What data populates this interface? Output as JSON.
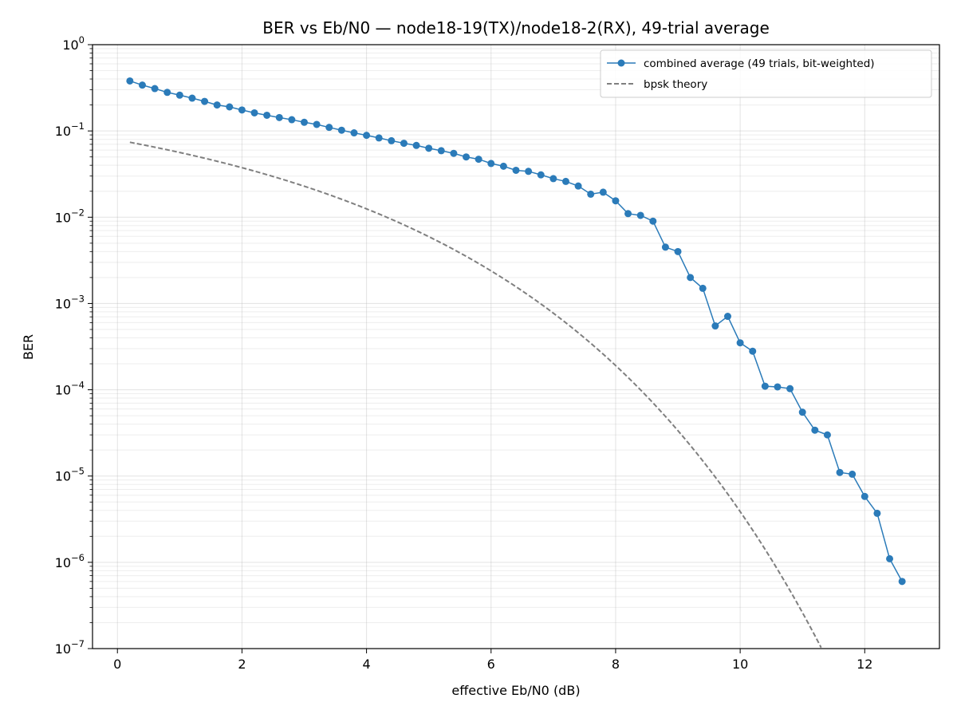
{
  "chart_data": {
    "type": "line",
    "title": "BER vs Eb/N0 — node18-19(TX)/node18-2(RX), 49-trial average",
    "xlabel": "effective Eb/N0 (dB)",
    "ylabel": "BER",
    "xlim": [
      -0.4,
      13.2
    ],
    "ylim": [
      1e-07,
      1
    ],
    "yscale": "log",
    "grid": true,
    "legend_position": "top-right",
    "x_ticks": [
      "0",
      "2",
      "4",
      "6",
      "8",
      "10",
      "12"
    ],
    "y_tick_exponents": [
      "0",
      "−1",
      "−2",
      "−3",
      "−4",
      "−5",
      "−6",
      "−7"
    ],
    "y_tick_base": "10",
    "series": [
      {
        "name": "combined average (49 trials, bit-weighted)",
        "color": "#2b7bb9",
        "style": "line-marker",
        "x": [
          0.2,
          0.4,
          0.6,
          0.8,
          1.0,
          1.2,
          1.4,
          1.6,
          1.8,
          2.0,
          2.2,
          2.4,
          2.6,
          2.8,
          3.0,
          3.2,
          3.4,
          3.6,
          3.8,
          4.0,
          4.2,
          4.4,
          4.6,
          4.8,
          5.0,
          5.2,
          5.4,
          5.6,
          5.8,
          6.0,
          6.2,
          6.4,
          6.6,
          6.8,
          7.0,
          7.2,
          7.4,
          7.6,
          7.8,
          8.0,
          8.2,
          8.4,
          8.6,
          8.8,
          9.0,
          9.2,
          9.4,
          9.6,
          9.8,
          10.0,
          10.2,
          10.4,
          10.6,
          10.8,
          11.0,
          11.2,
          11.4,
          11.6,
          11.8,
          12.0,
          12.2,
          12.4,
          12.6
        ],
        "y": [
          0.38,
          0.34,
          0.31,
          0.28,
          0.26,
          0.24,
          0.22,
          0.2,
          0.19,
          0.175,
          0.162,
          0.152,
          0.143,
          0.135,
          0.126,
          0.119,
          0.11,
          0.102,
          0.095,
          0.089,
          0.083,
          0.077,
          0.072,
          0.068,
          0.063,
          0.059,
          0.055,
          0.05,
          0.047,
          0.042,
          0.039,
          0.035,
          0.034,
          0.031,
          0.028,
          0.026,
          0.023,
          0.0185,
          0.0195,
          0.0155,
          0.011,
          0.0105,
          0.009,
          0.0045,
          0.004,
          0.002,
          0.0015,
          0.00055,
          0.00071,
          0.00035,
          0.00028,
          0.00011,
          0.000108,
          0.000103,
          5.5e-05,
          3.4e-05,
          3e-05,
          1.1e-05,
          1.05e-05,
          5.8e-06,
          3.7e-06,
          1.1e-06,
          6e-07
        ]
      },
      {
        "name": "bpsk theory",
        "color": "#7f7f7f",
        "style": "dashed",
        "theory": "bpsk",
        "x_start": 0.2,
        "x_end": 11.3
      }
    ]
  }
}
